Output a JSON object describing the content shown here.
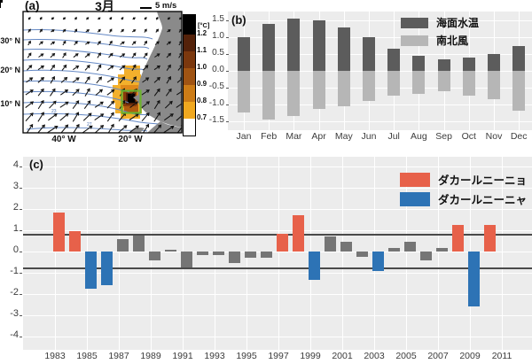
{
  "panel_a": {
    "label": "(a)",
    "title": "3月",
    "wind_scale_label": "5 m/s",
    "colorbar": {
      "unit": "[°C]",
      "tick_labels": [
        "1.2",
        "1.1",
        "1.0",
        "0.9",
        "0.8",
        "0.7"
      ],
      "segment_colors": [
        "#000000",
        "#54220a",
        "#7b380e",
        "#a05413",
        "#cc7c17",
        "#f0a81f",
        "#ffffff"
      ]
    },
    "lat_tick_labels": [
      "30° N",
      "20° N",
      "10° N"
    ],
    "lon_tick_labels": [
      "40° W",
      "20° W"
    ],
    "contour_labels": [
      "23",
      "27"
    ],
    "land_color": "#8a8a8a",
    "contour_color": "#6488c4",
    "anomaly_box_color": "#6cb22e"
  },
  "panel_b": {
    "label": "(b)"
  },
  "panel_c": {
    "label": "(c)"
  },
  "chart_data": [
    {
      "id": "monthly-climatology",
      "type": "bar",
      "categories": [
        "Jan",
        "Feb",
        "Mar",
        "Apr",
        "May",
        "Jun",
        "Jul",
        "Aug",
        "Sep",
        "Oct",
        "Nov",
        "Dec"
      ],
      "series": [
        {
          "name": "海面水温",
          "color": "#5c5c5c",
          "values": [
            1.0,
            1.4,
            1.55,
            1.5,
            1.3,
            1.0,
            0.65,
            0.45,
            0.35,
            0.4,
            0.5,
            0.75
          ]
        },
        {
          "name": "南北風",
          "color": "#b6b6b6",
          "values": [
            -1.25,
            -1.45,
            -1.35,
            -1.15,
            -1.05,
            -0.9,
            -0.75,
            -0.7,
            -0.6,
            -0.75,
            -0.85,
            -1.2
          ]
        }
      ],
      "ytick_labels": [
        "1.5",
        "1.0",
        "0.5",
        "0.0",
        "-0.5",
        "-1.0",
        "-1.5"
      ],
      "yticks": [
        1.5,
        1.0,
        0.5,
        0.0,
        -0.5,
        -1.0,
        -1.5
      ],
      "ylim": [
        -1.77,
        1.77
      ],
      "grid": true,
      "legend_position": "top-right"
    },
    {
      "id": "dakar-nino-index",
      "type": "bar",
      "x": [
        1983,
        1984,
        1985,
        1986,
        1987,
        1988,
        1989,
        1990,
        1991,
        1992,
        1993,
        1994,
        1995,
        1996,
        1997,
        1998,
        1999,
        2000,
        2001,
        2002,
        2003,
        2004,
        2005,
        2006,
        2007,
        2008,
        2009,
        2010
      ],
      "values": [
        1.85,
        0.95,
        -1.75,
        -1.6,
        0.6,
        0.75,
        -0.4,
        0.1,
        -0.75,
        -0.15,
        -0.15,
        -0.55,
        -0.3,
        -0.3,
        0.85,
        1.7,
        -1.35,
        0.7,
        0.45,
        -0.25,
        -0.9,
        0.15,
        0.45,
        -0.4,
        0.15,
        1.25,
        -2.6,
        1.25
      ],
      "classification": [
        "nino",
        "nino",
        "nina",
        "nina",
        "neutral",
        "neutral",
        "neutral",
        "neutral",
        "neutral",
        "neutral",
        "neutral",
        "neutral",
        "neutral",
        "neutral",
        "nino",
        "nino",
        "nina",
        "neutral",
        "neutral",
        "neutral",
        "nina",
        "neutral",
        "neutral",
        "neutral",
        "neutral",
        "nino",
        "nina",
        "nino"
      ],
      "class_colors": {
        "nino": "#e7614a",
        "nina": "#2d73b5",
        "neutral": "#757575"
      },
      "legend": [
        {
          "label": "ダカールニーニョ",
          "class": "nino",
          "color": "#e7614a"
        },
        {
          "label": "ダカールニーニャ",
          "class": "nina",
          "color": "#2d73b5"
        }
      ],
      "thresholds": [
        0.8,
        -0.8
      ],
      "yticks": [
        4,
        3,
        2,
        1,
        0,
        -1,
        -2,
        -3,
        -4
      ],
      "xtick_labels": [
        1983,
        1985,
        1987,
        1989,
        1991,
        1993,
        1995,
        1997,
        1999,
        2001,
        2003,
        2005,
        2007,
        2009,
        2011
      ],
      "ylim": [
        -4.7,
        4.5
      ],
      "grid": true,
      "legend_position": "top-right"
    }
  ]
}
